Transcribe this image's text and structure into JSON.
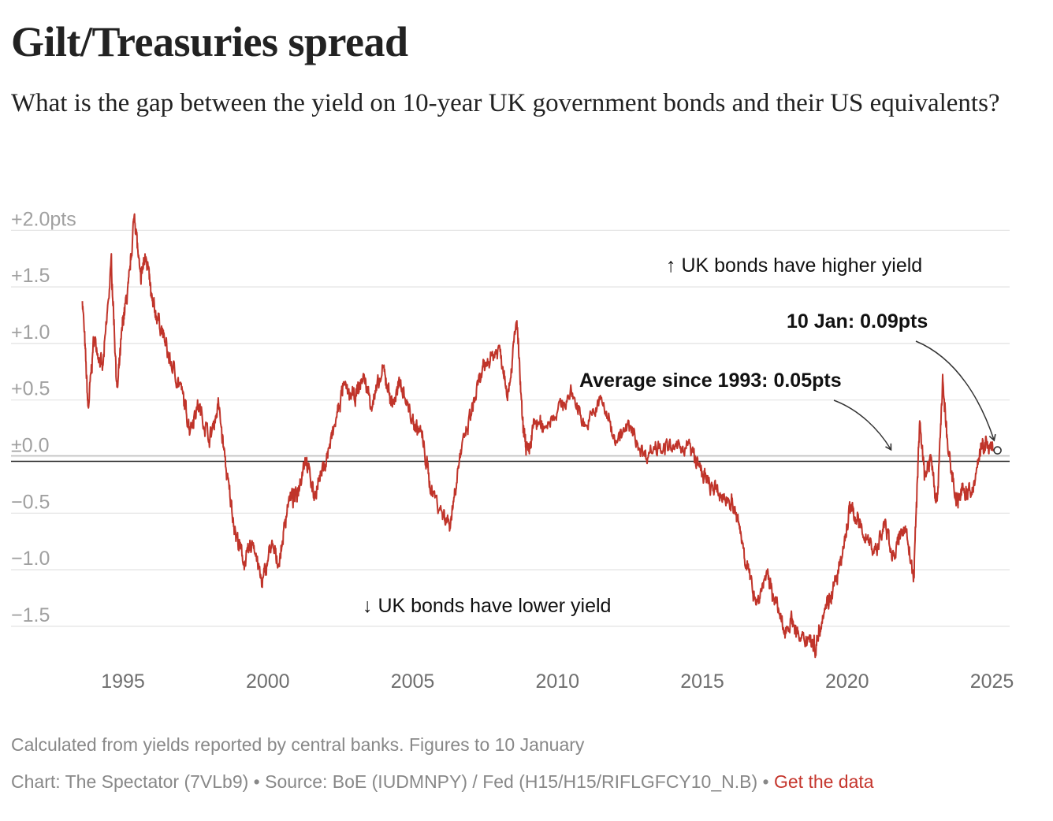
{
  "header": {
    "title": "Gilt/Treasuries spread",
    "subtitle": "What is the gap between the yield on 10-year UK government bonds and their US equivalents?"
  },
  "colors": {
    "line": "#c0342a",
    "grid": "#e2e2e2",
    "zero": "#222222",
    "link": "#c5362d"
  },
  "chart_data": {
    "type": "line",
    "title": "Gilt/Treasuries spread",
    "ylabel": "",
    "xlabel": "",
    "xlim": [
      1993.5,
      2025.3
    ],
    "ylim": [
      -1.7,
      2.1
    ],
    "grid": true,
    "y_ticks": [
      {
        "value": 2.0,
        "label": "+2.0pts"
      },
      {
        "value": 1.5,
        "label": "+1.5"
      },
      {
        "value": 1.0,
        "label": "+1.0"
      },
      {
        "value": 0.5,
        "label": "+0.5"
      },
      {
        "value": 0.0,
        "label": "±0.0"
      },
      {
        "value": -0.5,
        "label": "−0.5"
      },
      {
        "value": -1.0,
        "label": "−1.0"
      },
      {
        "value": -1.5,
        "label": "−1.5"
      }
    ],
    "x_ticks": [
      {
        "value": 1995,
        "label": "1995"
      },
      {
        "value": 2000,
        "label": "2000"
      },
      {
        "value": 2005,
        "label": "2005"
      },
      {
        "value": 2010,
        "label": "2010"
      },
      {
        "value": 2015,
        "label": "2015"
      },
      {
        "value": 2020,
        "label": "2020"
      },
      {
        "value": 2025,
        "label": "2025"
      }
    ],
    "average_since_1993": 0.05,
    "series": [
      {
        "name": "Gilt/Treasuries spread (pts)",
        "x": [
          1993.6,
          1993.8,
          1994.0,
          1994.3,
          1994.6,
          1994.8,
          1995.0,
          1995.2,
          1995.4,
          1995.6,
          1995.8,
          1996.0,
          1996.3,
          1996.6,
          1997.0,
          1997.3,
          1997.6,
          1998.0,
          1998.3,
          1998.6,
          1998.9,
          1999.2,
          1999.5,
          1999.8,
          2000.1,
          2000.4,
          2000.7,
          2001.0,
          2001.3,
          2001.6,
          2002.0,
          2002.3,
          2002.6,
          2003.0,
          2003.3,
          2003.6,
          2004.0,
          2004.3,
          2004.6,
          2005.0,
          2005.3,
          2005.6,
          2006.0,
          2006.3,
          2006.6,
          2007.0,
          2007.3,
          2007.6,
          2008.0,
          2008.3,
          2008.6,
          2008.8,
          2009.0,
          2009.2,
          2009.5,
          2010.0,
          2010.5,
          2011.0,
          2011.5,
          2012.0,
          2012.5,
          2013.0,
          2013.5,
          2014.0,
          2014.5,
          2014.9,
          2015.2,
          2015.6,
          2016.0,
          2016.3,
          2016.6,
          2016.9,
          2017.2,
          2017.5,
          2017.8,
          2018.1,
          2018.4,
          2018.7,
          2018.9,
          2019.2,
          2019.5,
          2019.8,
          2020.1,
          2020.3,
          2020.6,
          2021.0,
          2021.3,
          2021.6,
          2022.0,
          2022.3,
          2022.5,
          2022.7,
          2022.9,
          2023.1,
          2023.3,
          2023.5,
          2023.8,
          2024.0,
          2024.3,
          2024.6,
          2024.8,
          2025.03
        ],
        "values": [
          1.45,
          0.45,
          1.1,
          0.8,
          1.75,
          0.6,
          1.25,
          1.55,
          2.2,
          1.6,
          1.85,
          1.4,
          1.2,
          0.9,
          0.65,
          0.3,
          0.5,
          0.2,
          0.5,
          -0.15,
          -0.65,
          -0.9,
          -0.7,
          -1.1,
          -0.75,
          -0.9,
          -0.35,
          -0.3,
          0.05,
          -0.3,
          0.0,
          0.3,
          0.65,
          0.55,
          0.75,
          0.5,
          0.8,
          0.5,
          0.7,
          0.35,
          0.25,
          -0.2,
          -0.45,
          -0.55,
          0.0,
          0.4,
          0.7,
          0.9,
          1.0,
          0.6,
          1.25,
          0.3,
          0.05,
          0.35,
          0.3,
          0.45,
          0.6,
          0.3,
          0.55,
          0.2,
          0.3,
          0.05,
          0.15,
          0.1,
          0.15,
          -0.05,
          -0.2,
          -0.3,
          -0.35,
          -0.6,
          -1.0,
          -1.25,
          -1.0,
          -1.2,
          -1.5,
          -1.4,
          -1.6,
          -1.55,
          -1.65,
          -1.3,
          -1.15,
          -0.9,
          -0.4,
          -0.5,
          -0.65,
          -0.8,
          -0.55,
          -0.85,
          -0.55,
          -1.05,
          0.35,
          -0.15,
          0.05,
          -0.4,
          0.7,
          0.05,
          -0.35,
          -0.25,
          -0.3,
          0.1,
          0.15,
          0.09
        ]
      }
    ],
    "annotations": {
      "higher": "↑ UK bonds have higher yield",
      "lower": "↓ UK bonds have lower yield",
      "average": "Average since 1993: 0.05pts",
      "latest": "10 Jan: 0.09pts"
    }
  },
  "footer": {
    "note": "Calculated from yields reported by central banks. Figures to 10 January",
    "credit": "Chart: The Spectator (7VLb9) • Source: BoE (IUDMNPY) / Fed (H15/H15/RIFLGFCY10_N.B) • ",
    "link": "Get the data"
  }
}
